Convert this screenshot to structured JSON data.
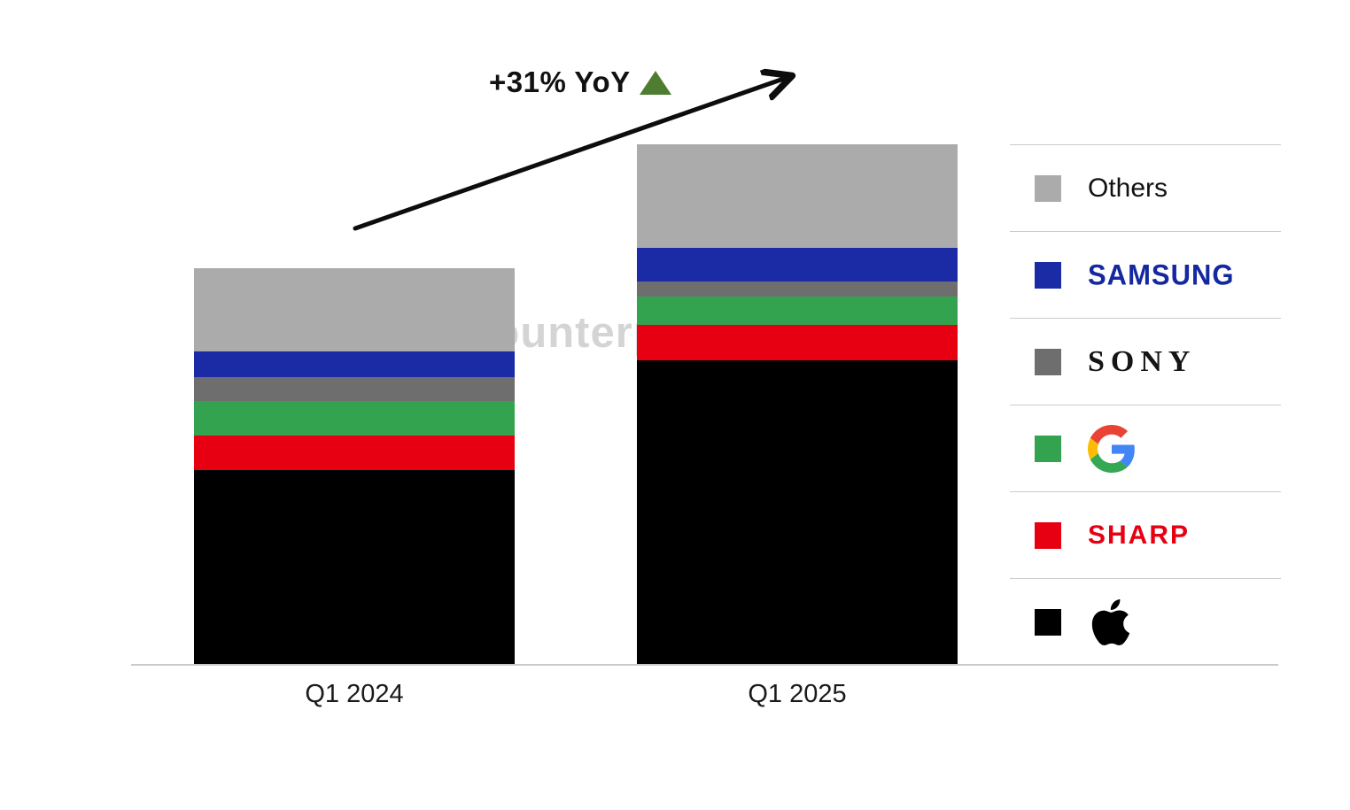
{
  "annotation": {
    "text": "+31% YoY",
    "triangle_color": "#4e7c31"
  },
  "watermark": {
    "text": "Counterpoint"
  },
  "chart_data": {
    "type": "bar",
    "stacked": true,
    "title": "",
    "categories": [
      "Q1 2024",
      "Q1 2025"
    ],
    "series": [
      {
        "name": "Apple",
        "color": "#000000",
        "values": [
          49.1,
          76.8
        ]
      },
      {
        "name": "Sharp",
        "color": "#e60012",
        "values": [
          8.7,
          8.9
        ]
      },
      {
        "name": "Google",
        "color": "#34a34f",
        "values": [
          8.7,
          7.1
        ]
      },
      {
        "name": "Sony",
        "color": "#6e6e6e",
        "values": [
          6.0,
          3.8
        ]
      },
      {
        "name": "Samsung",
        "color": "#1b2aa5",
        "values": [
          6.5,
          8.6
        ]
      },
      {
        "name": "Others",
        "color": "#ababab",
        "values": [
          21.0,
          26.0
        ]
      }
    ],
    "totals": [
      100,
      131.2
    ],
    "value_note": "relative index units estimated from bar pixel heights, Q1 2024 total = 100",
    "yoy_growth_pct": 31,
    "legend_position": "right",
    "grid": false,
    "y_axis_shown": false
  },
  "legend": {
    "items": [
      {
        "label": "Others",
        "swatch_color": "#ababab",
        "logo": "text-label"
      },
      {
        "label": "SAMSUNG",
        "swatch_color": "#1b2aa5",
        "logo": "samsung-wordmark"
      },
      {
        "label": "SONY",
        "swatch_color": "#6e6e6e",
        "logo": "sony-wordmark"
      },
      {
        "label": "Google",
        "swatch_color": "#34a34f",
        "logo": "google-g-logo"
      },
      {
        "label": "SHARP",
        "swatch_color": "#e60012",
        "logo": "sharp-wordmark"
      },
      {
        "label": "Apple",
        "swatch_color": "#000000",
        "logo": "apple-logo"
      }
    ]
  }
}
